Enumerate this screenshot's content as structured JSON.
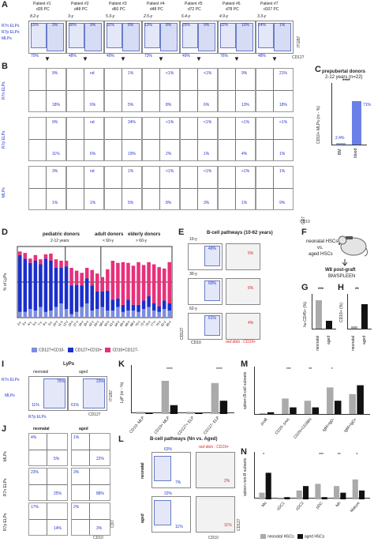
{
  "panelA": {
    "letter": "A",
    "patients": [
      {
        "name": "Patient #1",
        "age": "d35 PC",
        "sub": "8.2-y"
      },
      {
        "name": "Patient #2",
        "age": "d48 PC",
        "sub": "3-y"
      },
      {
        "name": "Patient #3",
        "age": "d60 PC",
        "sub": "5.3-y"
      },
      {
        "name": "Patient #4",
        "age": "d48 PC",
        "sub": "2.5-y"
      },
      {
        "name": "Patient #5",
        "age": "d72 PC",
        "sub": "6.4-y"
      },
      {
        "name": "Patient #6",
        "age": "d78 PC",
        "sub": "4.9-y"
      },
      {
        "name": "Patient #7",
        "age": "d107 PC",
        "sub": "3.3-y"
      }
    ],
    "gates": [
      "R7n ELPs",
      "R7p ELPs",
      "MLPs"
    ],
    "tl": [
      "15%",
      "30%",
      "32%",
      "13%",
      "20%",
      "22%",
      "14%"
    ],
    "tr": [
      "3%",
      "9%",
      "8%",
      "8%",
      "9%",
      "10%",
      "1%"
    ],
    "bl": [
      "70%",
      "48%",
      "49%",
      "73%",
      "49%",
      "76%",
      "48%"
    ],
    "xaxis": "CD127",
    "yaxis": "ITGB7"
  },
  "panelB": {
    "letter": "B",
    "rows": [
      "R7n ELPs",
      "R7p ELPs",
      "MLPs"
    ],
    "grid": [
      [
        [
          "9%",
          "18%"
        ],
        [
          "nd",
          "6%"
        ],
        [
          "1%",
          "5%"
        ],
        [
          "<1%",
          "8%"
        ],
        [
          "<1%",
          "6%"
        ],
        [
          "9%",
          "13%"
        ],
        [
          "21%",
          "18%"
        ]
      ],
      [
        [
          "9%",
          "11%"
        ],
        [
          "nd",
          "6%"
        ],
        [
          "24%",
          "19%"
        ],
        [
          "<1%",
          "2%"
        ],
        [
          "<1%",
          "1%"
        ],
        [
          "<1%",
          "4%"
        ],
        [
          "<1%",
          "1%"
        ]
      ],
      [
        [
          "3%",
          "1%"
        ],
        [
          "nd",
          "1%"
        ],
        [
          "1%",
          "5%"
        ],
        [
          "<1%",
          "8%"
        ],
        [
          "<1%",
          "3%"
        ],
        [
          "<1%",
          "1%"
        ],
        [
          "1%",
          "9%"
        ]
      ]
    ],
    "xaxis": "CD10",
    "yaxis": "CD7"
  },
  "panelC": {
    "letter": "C",
    "title": "prepubertal donors",
    "subtitle": "2-12 years (n=22)",
    "ylabel": "CD10+ MLPs (nr - %)",
    "sig": "****",
    "bars": [
      {
        "label": "BM",
        "value": 2.4,
        "text": "2.4%"
      },
      {
        "label": "blood",
        "value": 71,
        "text": "71%"
      }
    ]
  },
  "panelD": {
    "letter": "D",
    "groups": [
      {
        "title": "pediatric donors",
        "sub": "2-12 years"
      },
      {
        "title": "adult donors",
        "sub": "< 60-y"
      },
      {
        "title": "elderly donors",
        "sub": "> 60-y"
      }
    ],
    "ylabel": "% of LyPs",
    "legend": [
      "CD127+CD10-",
      "CD127+CD10+",
      "CD10+CD127-"
    ],
    "colors": [
      "#7d8ee0",
      "#1a2fcc",
      "#e8307a"
    ]
  },
  "chart_data": {
    "type": "bar",
    "title": "",
    "ylabel": "% of LyPs",
    "ylim": [
      0,
      100
    ],
    "categories": [
      "2-y",
      "3-y",
      "4-y",
      "5-y",
      "7-y",
      "8-y",
      "9-y",
      "10-y",
      "11-y",
      "12-y",
      "24-y",
      "27-y",
      "34-y",
      "35-y",
      "42-y",
      "55-y",
      "58-y",
      "59-y",
      "61-y",
      "64-y",
      "65-y",
      "66-y",
      "68-y",
      "70-y",
      "72-y",
      "75-y",
      "77-y",
      "79-y",
      "81-y",
      "85-y"
    ],
    "series": [
      {
        "name": "CD127+CD10-",
        "values": [
          8,
          8,
          12,
          10,
          15,
          8,
          10,
          15,
          20,
          12,
          5,
          8,
          15,
          20,
          10,
          12,
          15,
          10,
          10,
          15,
          8,
          10,
          10,
          8,
          12,
          15,
          10,
          8,
          12,
          10
        ]
      },
      {
        "name": "CD127+CD10+",
        "values": [
          80,
          75,
          65,
          70,
          60,
          75,
          70,
          55,
          50,
          60,
          40,
          38,
          30,
          35,
          35,
          25,
          22,
          28,
          15,
          12,
          10,
          15,
          8,
          10,
          12,
          15,
          10,
          8,
          12,
          10
        ]
      },
      {
        "name": "CD10+CD127-",
        "values": [
          5,
          8,
          6,
          8,
          7,
          6,
          10,
          12,
          10,
          8,
          25,
          20,
          18,
          15,
          22,
          25,
          20,
          30,
          55,
          50,
          60,
          52,
          55,
          60,
          50,
          48,
          55,
          55,
          45,
          58
        ]
      }
    ]
  },
  "panelE": {
    "letter": "E",
    "title": "B-cell pathways (10-62 years)",
    "rows": [
      {
        "age": "10-y",
        "blue": "49%",
        "red": "5%"
      },
      {
        "age": "30-y",
        "blue": "69%",
        "red": "6%"
      },
      {
        "age": "62-y",
        "blue": "61%",
        "red": "4%"
      }
    ],
    "note": "red dots : CD19+",
    "xaxis": "CD10",
    "yaxis": "CD127"
  },
  "panelF": {
    "letter": "F",
    "l1": "neonatal HSCs",
    "l2": "vs.",
    "l3": "aged HSCs",
    "l4": "W8 post-graft",
    "l5": "BM/SPLEEN"
  },
  "panelG": {
    "letter": "G",
    "ylabel": "hu-CD45+ (%)",
    "sig": "***",
    "cats": [
      "neonatal",
      "aged"
    ]
  },
  "panelH": {
    "letter": "H",
    "ylabel": "CD19+ (%)",
    "sig": "**",
    "cats": [
      "neonatal",
      "aged"
    ]
  },
  "panelI": {
    "letter": "I",
    "title": "LyPs",
    "cols": [
      "neonatal",
      "aged"
    ],
    "gates": [
      "R7n ELPs",
      "MLPs",
      "R7p ELPs"
    ],
    "neo": [
      "75%",
      "11%"
    ],
    "aged": [
      "23%",
      "61%"
    ],
    "xaxis": "CD127",
    "yaxis": "ITGB7"
  },
  "panelJ": {
    "letter": "J",
    "cols": [
      "neonatal",
      "aged"
    ],
    "rows": [
      "MLPs",
      "R7n ELPs",
      "R7p ELPs"
    ],
    "neo": [
      [
        "4%",
        "5%"
      ],
      [
        "23%",
        "25%"
      ],
      [
        "17%",
        "14%"
      ]
    ],
    "aged": [
      [
        "1%",
        "22%"
      ],
      [
        "3%",
        "88%"
      ],
      [
        "2%",
        "3%"
      ]
    ],
    "xaxis": "CD10",
    "yaxis": "CD7"
  },
  "panelK": {
    "letter": "K",
    "ylabel": "LyP (nr - %)",
    "sig": [
      "****",
      "****"
    ],
    "cats": [
      "CD10- MLP",
      "CD10+ MLP",
      "CD127+ ELP",
      "CD127- ELP"
    ]
  },
  "panelL": {
    "letter": "L",
    "title": "B-cell pathways (Nn vs. Aged)",
    "note": "red dots : CD19+",
    "rows": [
      {
        "label": "neonatal",
        "blue1": "63%",
        "blue2": "7%",
        "red": "2%"
      },
      {
        "label": "aged",
        "blue1": "22%",
        "blue2": "11%",
        "red": "11%"
      }
    ],
    "xaxis": "CD10",
    "yaxis": "CD127"
  },
  "panelM": {
    "letter": "M",
    "ylabel": "spleen B-cell subsets",
    "sig": [
      "***",
      "**",
      "*"
    ],
    "cats": [
      "proB",
      "CD20- prec",
      "CD20+CD38hi",
      "IgM+IgD-",
      "IgM+IgD+"
    ]
  },
  "panelN": {
    "letter": "N",
    "ylabel": "spleen non-B subsets",
    "sig": [
      "*",
      "***",
      "**",
      "*"
    ],
    "cats": [
      "Mo",
      "cDC1",
      "cDC2",
      "pDC",
      "NK",
      "Mature"
    ],
    "legend": [
      "neonatal HSCs",
      "aged HSCs"
    ]
  }
}
